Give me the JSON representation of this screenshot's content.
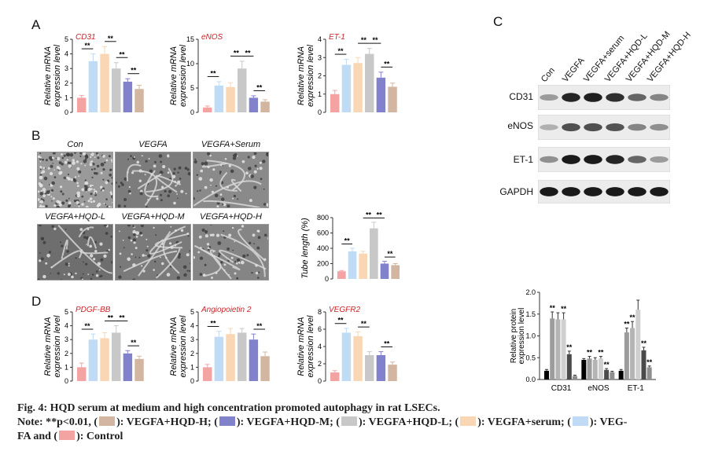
{
  "panels": {
    "A": "A",
    "B": "B",
    "C": "C",
    "D": "D"
  },
  "colors": {
    "control": "#f4a3a3",
    "vegfa": "#bfdbf5",
    "serum": "#f9d6b4",
    "hqd_l": "#c8c8c8",
    "hqd_m": "#8282cc",
    "hqd_h": "#d3b6a1"
  },
  "microscopy": {
    "labels": [
      "Con",
      "VEGFA",
      "VEGFA+Serum",
      "VEGFA+HQD-L",
      "VEGFA+HQD-M",
      "VEGFA+HQD-H"
    ]
  },
  "western": {
    "lanes": [
      "Con",
      "VEGFA",
      "VEGFA+serum",
      "VEGFA+HQD-L",
      "VEGFA+HQD-M",
      "VEGFA+HQD-H"
    ],
    "rows": [
      "CD31",
      "eNOS",
      "ET-1",
      "GAPDH"
    ],
    "band_intensity": [
      [
        0.35,
        0.9,
        0.92,
        0.85,
        0.6,
        0.45
      ],
      [
        0.25,
        0.7,
        0.7,
        0.68,
        0.45,
        0.4
      ],
      [
        0.4,
        0.95,
        0.95,
        0.9,
        0.6,
        0.35
      ],
      [
        0.95,
        0.95,
        0.95,
        0.95,
        0.95,
        0.95
      ]
    ]
  },
  "chart_data": [
    {
      "id": "A-CD31",
      "type": "bar",
      "title": "CD31",
      "ylabel": "Relative mRNA expression level",
      "categories": [
        "Control",
        "VEGFA",
        "VEGFA+serum",
        "VEGFA+HQD-L",
        "VEGFA+HQD-M",
        "VEGFA+HQD-H"
      ],
      "values": [
        1.0,
        3.5,
        4.0,
        3.0,
        2.1,
        1.6
      ],
      "errors": [
        0.15,
        0.5,
        0.5,
        0.4,
        0.2,
        0.25
      ],
      "ylim": [
        0,
        5
      ],
      "yticks": [
        0,
        1,
        2,
        3,
        4,
        5
      ],
      "sig": [
        {
          "from": 0,
          "to": 1,
          "label": "**"
        },
        {
          "from": 2,
          "to": 3,
          "label": "**"
        },
        {
          "from": 3,
          "to": 4,
          "label": "**"
        },
        {
          "from": 4,
          "to": 5,
          "label": "**"
        }
      ]
    },
    {
      "id": "A-eNOS",
      "type": "bar",
      "title": "eNOS",
      "ylabel": "Relative mRNA expression level",
      "categories": [
        "Control",
        "VEGFA",
        "VEGFA+serum",
        "VEGFA+HQD-L",
        "VEGFA+HQD-M",
        "VEGFA+HQD-H"
      ],
      "values": [
        1.0,
        5.5,
        5.2,
        9.0,
        3.0,
        2.2
      ],
      "errors": [
        0.3,
        0.8,
        0.9,
        1.5,
        0.4,
        0.4
      ],
      "ylim": [
        0,
        15
      ],
      "yticks": [
        0,
        5,
        10,
        15
      ],
      "sig": [
        {
          "from": 0,
          "to": 1,
          "label": "**"
        },
        {
          "from": 2,
          "to": 3,
          "label": "**"
        },
        {
          "from": 3,
          "to": 4,
          "label": "**"
        },
        {
          "from": 4,
          "to": 5,
          "label": "**"
        }
      ]
    },
    {
      "id": "A-ET1",
      "type": "bar",
      "title": "ET-1",
      "ylabel": "Relative mRNA expression level",
      "categories": [
        "Control",
        "VEGFA",
        "VEGFA+serum",
        "VEGFA+HQD-L",
        "VEGFA+HQD-M",
        "VEGFA+HQD-H"
      ],
      "values": [
        1.0,
        2.6,
        2.7,
        3.2,
        1.9,
        1.4
      ],
      "errors": [
        0.2,
        0.3,
        0.3,
        0.3,
        0.3,
        0.2
      ],
      "ylim": [
        0,
        4
      ],
      "yticks": [
        0,
        1,
        2,
        3,
        4
      ],
      "sig": [
        {
          "from": 0,
          "to": 1,
          "label": "**"
        },
        {
          "from": 2,
          "to": 3,
          "label": "**"
        },
        {
          "from": 3,
          "to": 4,
          "label": "**"
        },
        {
          "from": 4,
          "to": 5,
          "label": "**"
        }
      ]
    },
    {
      "id": "B-tube",
      "type": "bar",
      "title": "",
      "ylabel": "Tube length (%)",
      "categories": [
        "Control",
        "VEGFA",
        "VEGFA+serum",
        "VEGFA+HQD-L",
        "VEGFA+HQD-M",
        "VEGFA+HQD-H"
      ],
      "values": [
        100,
        360,
        330,
        660,
        200,
        180
      ],
      "errors": [
        10,
        40,
        30,
        80,
        30,
        20
      ],
      "ylim": [
        0,
        800
      ],
      "yticks": [
        0,
        200,
        400,
        600,
        800
      ],
      "sig": [
        {
          "from": 0,
          "to": 1,
          "label": "**"
        },
        {
          "from": 2,
          "to": 3,
          "label": "**"
        },
        {
          "from": 3,
          "to": 4,
          "label": "**"
        },
        {
          "from": 4,
          "to": 5,
          "label": "**"
        }
      ]
    },
    {
      "id": "D-PDGF",
      "type": "bar",
      "title": "PDGF-BB",
      "ylabel": "Relative mRNA expression level",
      "categories": [
        "Control",
        "VEGFA",
        "VEGFA+serum",
        "VEGFA+HQD-L",
        "VEGFA+HQD-M",
        "VEGFA+HQD-H"
      ],
      "values": [
        1.0,
        3.0,
        3.1,
        3.5,
        2.0,
        1.6
      ],
      "errors": [
        0.3,
        0.4,
        0.4,
        0.5,
        0.2,
        0.2
      ],
      "ylim": [
        0,
        5
      ],
      "yticks": [
        0,
        1,
        2,
        3,
        4,
        5
      ],
      "sig": [
        {
          "from": 0,
          "to": 1,
          "label": "**"
        },
        {
          "from": 2,
          "to": 3,
          "label": "**"
        },
        {
          "from": 3,
          "to": 4,
          "label": "**"
        },
        {
          "from": 4,
          "to": 5,
          "label": "**"
        }
      ]
    },
    {
      "id": "D-Ang2",
      "type": "bar",
      "title": "Angiopoietin 2",
      "ylabel": "Relative mRNA expression level",
      "categories": [
        "Control",
        "VEGFA",
        "VEGFA+serum",
        "VEGFA+HQD-L",
        "VEGFA+HQD-M",
        "VEGFA+HQD-H"
      ],
      "values": [
        1.0,
        3.2,
        3.4,
        3.5,
        3.0,
        1.8
      ],
      "errors": [
        0.2,
        0.4,
        0.4,
        0.3,
        0.4,
        0.3
      ],
      "ylim": [
        0,
        5
      ],
      "yticks": [
        0,
        1,
        2,
        3,
        4,
        5
      ],
      "sig": [
        {
          "from": 0,
          "to": 1,
          "label": "**"
        },
        {
          "from": 4,
          "to": 5,
          "label": "**"
        }
      ]
    },
    {
      "id": "D-VEGFR2",
      "type": "bar",
      "title": "VEGFR2",
      "ylabel": "Relative mRNA expression level",
      "categories": [
        "Control",
        "VEGFA",
        "VEGFA+serum",
        "VEGFA+HQD-L",
        "VEGFA+HQD-M",
        "VEGFA+HQD-H"
      ],
      "values": [
        1.0,
        5.6,
        5.2,
        3.0,
        3.0,
        1.9
      ],
      "errors": [
        0.2,
        0.5,
        0.5,
        0.4,
        0.4,
        0.3
      ],
      "ylim": [
        0,
        8
      ],
      "yticks": [
        0,
        2,
        4,
        6,
        8
      ],
      "sig": [
        {
          "from": 0,
          "to": 1,
          "label": "**"
        },
        {
          "from": 2,
          "to": 3,
          "label": "**"
        },
        {
          "from": 4,
          "to": 5,
          "label": "**"
        }
      ]
    },
    {
      "id": "C-protein",
      "type": "bar",
      "title": "",
      "ylabel": "Relative protein expression level",
      "categories": [
        "CD31",
        "eNOS",
        "ET-1"
      ],
      "ylim": [
        0,
        2.0
      ],
      "yticks": [
        0.0,
        0.5,
        1.0,
        1.5,
        2.0
      ],
      "series_colors": [
        "#000000",
        "#9c9c9c",
        "#b4b4b4",
        "#cfcfcf",
        "#4a4a4a",
        "#8e8e8e"
      ],
      "series": [
        {
          "values": [
            0.2,
            0.45,
            0.2
          ],
          "errors": [
            0.03,
            0.03,
            0.03
          ]
        },
        {
          "values": [
            1.4,
            0.48,
            1.08
          ],
          "errors": [
            0.15,
            0.05,
            0.1
          ]
        },
        {
          "values": [
            1.38,
            0.45,
            1.18
          ],
          "errors": [
            0.15,
            0.05,
            0.15
          ]
        },
        {
          "values": [
            1.38,
            0.48,
            1.6
          ],
          "errors": [
            0.15,
            0.05,
            0.22
          ]
        },
        {
          "values": [
            0.58,
            0.22,
            0.67
          ],
          "errors": [
            0.07,
            0.03,
            0.07
          ]
        },
        {
          "values": [
            0.08,
            0.17,
            0.28
          ],
          "errors": [
            0.02,
            0.02,
            0.03
          ]
        }
      ],
      "sig": [
        {
          "group": 0,
          "bar": 1,
          "label": "**"
        },
        {
          "group": 0,
          "bar": 3,
          "label": "**"
        },
        {
          "group": 0,
          "bar": 4,
          "label": "**"
        },
        {
          "group": 1,
          "bar": 1,
          "label": "**"
        },
        {
          "group": 1,
          "bar": 3,
          "label": "**"
        },
        {
          "group": 1,
          "bar": 4,
          "label": "**"
        },
        {
          "group": 2,
          "bar": 1,
          "label": "**"
        },
        {
          "group": 2,
          "bar": 2,
          "label": "**"
        },
        {
          "group": 2,
          "bar": 4,
          "label": "**"
        },
        {
          "group": 2,
          "bar": 5,
          "label": "**"
        }
      ]
    }
  ],
  "caption": {
    "title": "Fig. 4: HQD serum at medium and high concentration promoted autophagy in rat LSECs.",
    "note_prefix": "Note: **p<0.01, (",
    "note_h": "): VEGFA+HQD-H; (",
    "note_m": "): VEGFA+HQD-M; (",
    "note_l": "): VEGFA+HQD-L; (",
    "note_serum": "): VEGFA+serum; (",
    "note_vegfa": "): VEG-",
    "note_line2_prefix": "FA and (",
    "note_control": "): Control"
  }
}
